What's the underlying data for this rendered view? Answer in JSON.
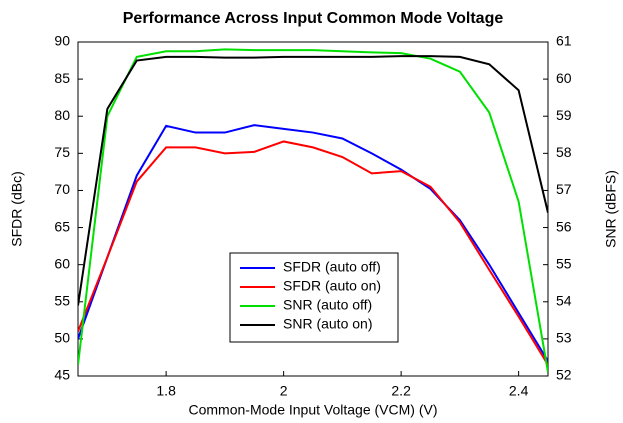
{
  "chart_data": {
    "type": "line",
    "title": "Performance Across Input Common Mode Voltage",
    "x_label": "Common-Mode Input Voltage (VCM) (V)",
    "y_label": "SFDR (dBc)",
    "y2_label": "SNR (dBFS)",
    "x": [
      1.65,
      1.7,
      1.75,
      1.8,
      1.85,
      1.9,
      1.95,
      2.0,
      2.05,
      2.1,
      2.15,
      2.2,
      2.25,
      2.3,
      2.35,
      2.4,
      2.45
    ],
    "xlim": [
      1.65,
      2.45
    ],
    "xticks": [
      1.8,
      2.0,
      2.2,
      2.4
    ],
    "ylim": [
      45,
      90
    ],
    "yticks": [
      45,
      50,
      55,
      60,
      65,
      70,
      75,
      80,
      85,
      90
    ],
    "y2lim": [
      52,
      61
    ],
    "y2ticks": [
      52,
      53,
      54,
      55,
      56,
      57,
      58,
      59,
      60,
      61
    ],
    "legend": "lower center",
    "series": [
      {
        "name": "SFDR (auto off)",
        "color": "#0000ff",
        "values": [
          50,
          61,
          72,
          78.7,
          77.8,
          77.8,
          78.8,
          78.3,
          77.8,
          77.0,
          75,
          72.8,
          70.2,
          66,
          60,
          53.5,
          47
        ]
      },
      {
        "name": "SFDR (auto on)",
        "color": "#ff0000",
        "values": [
          51,
          61,
          71.2,
          75.8,
          75.8,
          75,
          75.2,
          76.6,
          75.8,
          74.5,
          72.3,
          72.6,
          70.5,
          65.7,
          59.3,
          53,
          46.5
        ]
      },
      {
        "name": "SNR (auto off)",
        "color": "#00e000",
        "axis": "y2",
        "values": [
          52.3,
          59,
          60.6,
          60.75,
          60.75,
          60.8,
          60.78,
          60.78,
          60.78,
          60.75,
          60.72,
          60.7,
          60.55,
          60.2,
          59.1,
          56.7,
          52.1
        ]
      },
      {
        "name": "SNR (auto on)",
        "color": "#000000",
        "axis": "y2",
        "values": [
          53.9,
          59.2,
          60.5,
          60.6,
          60.6,
          60.58,
          60.58,
          60.6,
          60.6,
          60.6,
          60.6,
          60.62,
          60.62,
          60.6,
          60.4,
          59.7,
          56.4
        ]
      }
    ]
  }
}
